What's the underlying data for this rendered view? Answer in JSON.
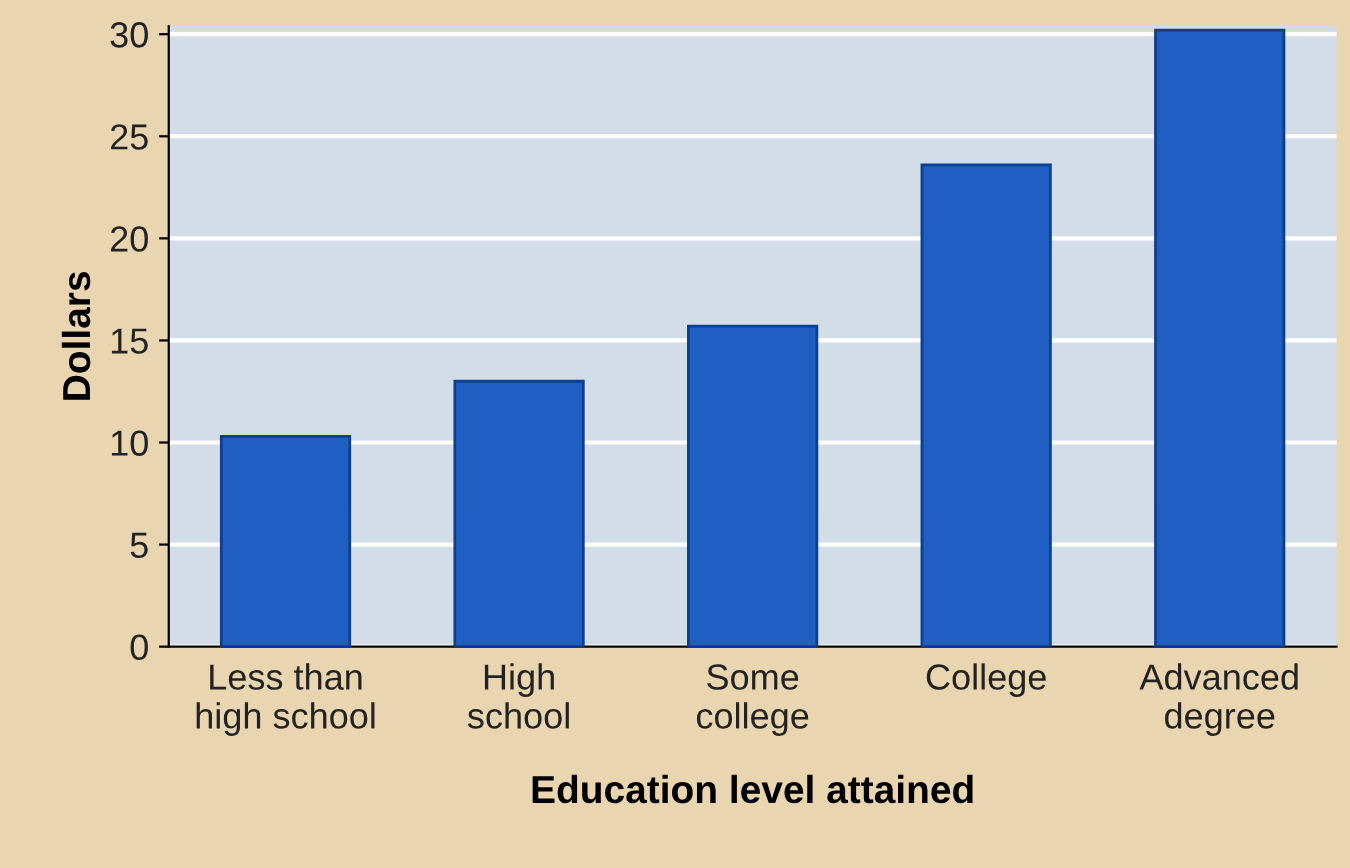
{
  "chart_data": {
    "type": "bar",
    "xlabel": "Education level attained",
    "ylabel": "Dollars",
    "categories": [
      "Less than\nhigh school",
      "High\nschool",
      "Some\ncollege",
      "College",
      "Advanced\ndegree"
    ],
    "values": [
      10.3,
      13.0,
      15.7,
      23.6,
      30.2
    ],
    "color": "#1f5fc4",
    "ylim": [
      0,
      30.4
    ],
    "yticks": [
      0,
      5,
      10,
      15,
      20,
      25,
      30
    ],
    "grid": "y",
    "legend": false
  }
}
